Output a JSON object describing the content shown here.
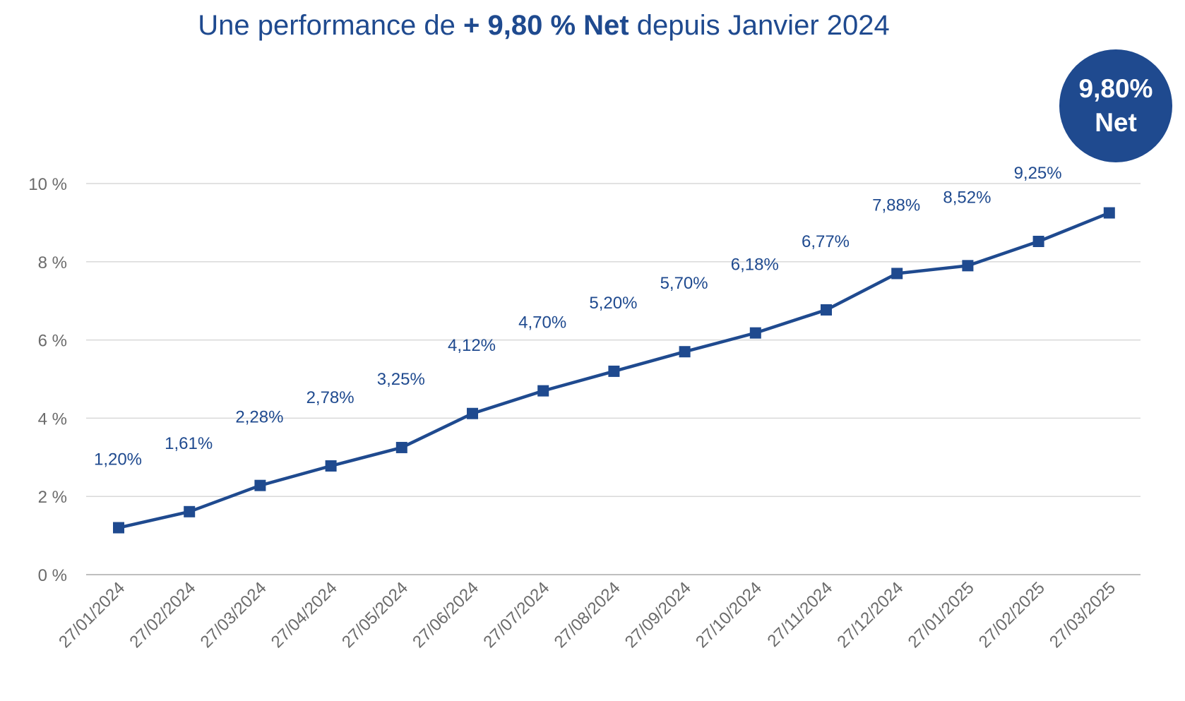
{
  "title": {
    "prefix": "Une performance de ",
    "highlight": "+ 9,80 % Net",
    "suffix": " depuis Janvier 2024"
  },
  "badge": {
    "line1": "9,80%",
    "line2": "Net"
  },
  "colors": {
    "primary": "#1f4a8f",
    "grid": "#d9d9d9",
    "axis_text": "#6b6b6b",
    "axis_line": "#bfbfbf"
  },
  "chart_data": {
    "type": "line",
    "categories": [
      "27/01/2024",
      "27/02/2024",
      "27/03/2024",
      "27/04/2024",
      "27/05/2024",
      "27/06/2024",
      "27/07/2024",
      "27/08/2024",
      "27/09/2024",
      "27/10/2024",
      "27/11/2024",
      "27/12/2024",
      "27/01/2025",
      "27/02/2025",
      "27/03/2025"
    ],
    "series": [
      {
        "values": [
          1.2,
          1.61,
          2.28,
          2.78,
          3.25,
          4.12,
          4.7,
          5.2,
          5.7,
          6.18,
          6.77,
          7.7,
          7.9,
          8.52,
          9.25
        ]
      }
    ],
    "data_labels": [
      "1,20%",
      "1,61%",
      "2,28%",
      "2,78%",
      "3,25%",
      "4,12%",
      "4,70%",
      "5,20%",
      "5,70%",
      "6,18%",
      "6,77%",
      "7,88%",
      "8,52%",
      "9,25%"
    ],
    "ylim": [
      0,
      10
    ],
    "yticks": [
      0,
      2,
      4,
      6,
      8,
      10
    ],
    "ytick_labels": [
      "0 %",
      "2 %",
      "4 %",
      "6 %",
      "8 %",
      "10 %"
    ],
    "grid": true,
    "legend": "none",
    "marker": "square"
  }
}
